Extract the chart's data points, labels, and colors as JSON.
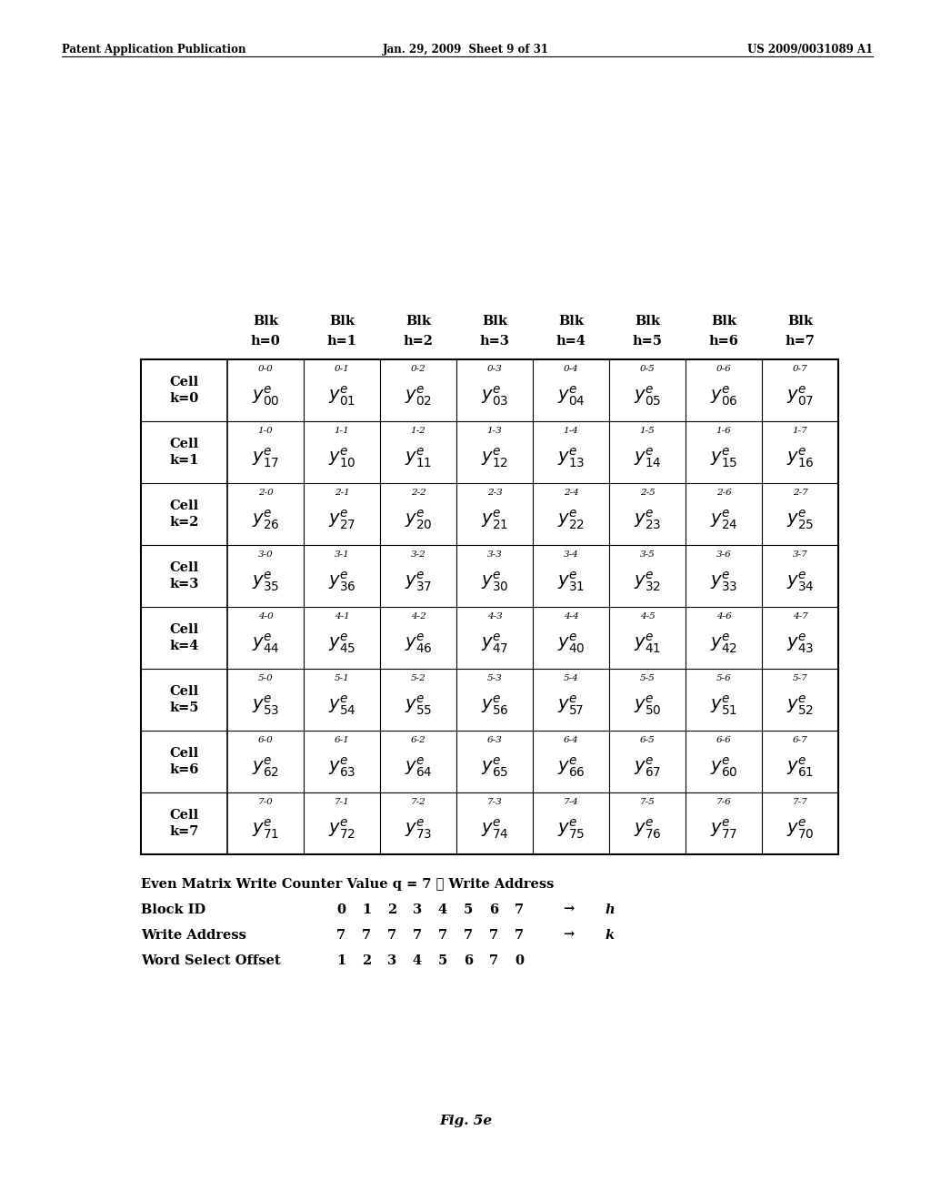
{
  "title_left": "Patent Application Publication",
  "title_center": "Jan. 29, 2009  Sheet 9 of 31",
  "title_right": "US 2009/0031089 A1",
  "col_headers_line1": [
    "Blk",
    "Blk",
    "Blk",
    "Blk",
    "Blk",
    "Blk",
    "Blk",
    "Blk"
  ],
  "col_headers_line2": [
    "h=0",
    "h=1",
    "h=2",
    "h=3",
    "h=4",
    "h=5",
    "h=6",
    "h=7"
  ],
  "row_labels_line1": [
    "Cell",
    "Cell",
    "Cell",
    "Cell",
    "Cell",
    "Cell",
    "Cell",
    "Cell"
  ],
  "row_labels_line2": [
    "k=0",
    "k=1",
    "k=2",
    "k=3",
    "k=4",
    "k=5",
    "k=6",
    "k=7"
  ],
  "cell_annotations": [
    [
      "0-0",
      "0-1",
      "0-2",
      "0-3",
      "0-4",
      "0-5",
      "0-6",
      "0-7"
    ],
    [
      "1-0",
      "1-1",
      "1-2",
      "1-3",
      "1-4",
      "1-5",
      "1-6",
      "1-7"
    ],
    [
      "2-0",
      "2-1",
      "2-2",
      "2-3",
      "2-4",
      "2-5",
      "2-6",
      "2-7"
    ],
    [
      "3-0",
      "3-1",
      "3-2",
      "3-3",
      "3-4",
      "3-5",
      "3-6",
      "3-7"
    ],
    [
      "4-0",
      "4-1",
      "4-2",
      "4-3",
      "4-4",
      "4-5",
      "4-6",
      "4-7"
    ],
    [
      "5-0",
      "5-1",
      "5-2",
      "5-3",
      "5-4",
      "5-5",
      "5-6",
      "5-7"
    ],
    [
      "6-0",
      "6-1",
      "6-2",
      "6-3",
      "6-4",
      "6-5",
      "6-6",
      "6-7"
    ],
    [
      "7-0",
      "7-1",
      "7-2",
      "7-3",
      "7-4",
      "7-5",
      "7-6",
      "7-7"
    ]
  ],
  "cell_subs": [
    [
      "00",
      "01",
      "02",
      "03",
      "04",
      "05",
      "06",
      "07"
    ],
    [
      "17",
      "10",
      "11",
      "12",
      "13",
      "14",
      "15",
      "16"
    ],
    [
      "26",
      "27",
      "20",
      "21",
      "22",
      "23",
      "24",
      "25"
    ],
    [
      "35",
      "36",
      "37",
      "30",
      "31",
      "32",
      "33",
      "34"
    ],
    [
      "44",
      "45",
      "46",
      "47",
      "40",
      "41",
      "42",
      "43"
    ],
    [
      "53",
      "54",
      "55",
      "56",
      "57",
      "50",
      "51",
      "52"
    ],
    [
      "62",
      "63",
      "64",
      "65",
      "66",
      "67",
      "60",
      "61"
    ],
    [
      "71",
      "72",
      "73",
      "74",
      "75",
      "76",
      "77",
      "70"
    ]
  ],
  "bottom_line0": "Even Matrix Write Counter Value q = 7 ≙ Write Address",
  "bottom_rows": [
    {
      "label": "Block ID",
      "values": [
        "0",
        "1",
        "2",
        "3",
        "4",
        "5",
        "6",
        "7"
      ],
      "arrow": true,
      "end": "h"
    },
    {
      "label": "Write Address",
      "values": [
        "7",
        "7",
        "7",
        "7",
        "7",
        "7",
        "7",
        "7"
      ],
      "arrow": true,
      "end": "k"
    },
    {
      "label": "Word Select Offset",
      "values": [
        "1",
        "2",
        "3",
        "4",
        "5",
        "6",
        "7",
        "0"
      ],
      "arrow": false,
      "end": ""
    }
  ],
  "fig_label": "Fig. 5e",
  "bg_color": "#ffffff",
  "text_color": "#000000"
}
